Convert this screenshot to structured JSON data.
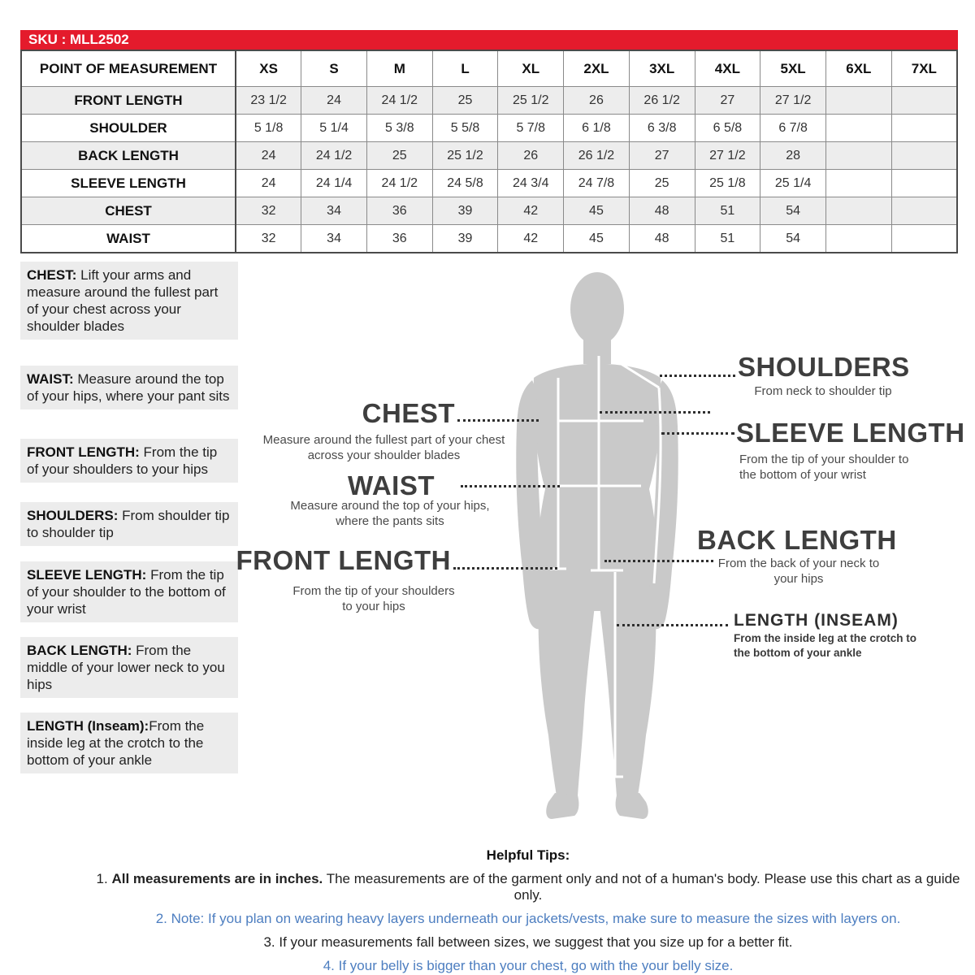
{
  "sku_bar": {
    "label": "SKU : MLL2502"
  },
  "colors": {
    "header_red": "#e41b2c",
    "tip_blue": "#4d7ec0",
    "tip_black": "#222222",
    "silhouette_gray": "#c9c9c9",
    "block_gray": "#ececec"
  },
  "table": {
    "columns": [
      "POINT OF MEASUREMENT",
      "XS",
      "S",
      "M",
      "L",
      "XL",
      "2XL",
      "3XL",
      "4XL",
      "5XL",
      "6XL",
      "7XL"
    ],
    "rows": [
      {
        "label": "FRONT LENGTH",
        "values": [
          "23 1/2",
          "24",
          "24 1/2",
          "25",
          "25 1/2",
          "26",
          "26 1/2",
          "27",
          "27 1/2",
          "",
          ""
        ]
      },
      {
        "label": "SHOULDER",
        "values": [
          "5 1/8",
          "5 1/4",
          "5 3/8",
          "5 5/8",
          "5 7/8",
          "6 1/8",
          "6 3/8",
          "6 5/8",
          "6 7/8",
          "",
          ""
        ]
      },
      {
        "label": "BACK LENGTH",
        "values": [
          "24",
          "24 1/2",
          "25",
          "25 1/2",
          "26",
          "26 1/2",
          "27",
          "27 1/2",
          "28",
          "",
          ""
        ]
      },
      {
        "label": "SLEEVE LENGTH",
        "values": [
          "24",
          "24 1/4",
          "24 1/2",
          "24 5/8",
          "24 3/4",
          "24 7/8",
          "25",
          "25 1/8",
          "25 1/4",
          "",
          ""
        ]
      },
      {
        "label": "CHEST",
        "values": [
          "32",
          "34",
          "36",
          "39",
          "42",
          "45",
          "48",
          "51",
          "54",
          "",
          ""
        ]
      },
      {
        "label": "WAIST",
        "values": [
          "32",
          "34",
          "36",
          "39",
          "42",
          "45",
          "48",
          "51",
          "54",
          "",
          ""
        ]
      }
    ]
  },
  "instructions": [
    {
      "title": "CHEST:",
      "text": " Lift your arms  and measure around the fullest part of your chest across your shoulder blades"
    },
    {
      "title": "WAIST:",
      "text": "  Measure around the top of your hips, where your pant sits"
    },
    {
      "title": "FRONT LENGTH:",
      "text": " From the tip of your shoulders to your hips"
    },
    {
      "title": "SHOULDERS:",
      "text": " From shoulder tip to shoulder tip"
    },
    {
      "title": "SLEEVE LENGTH:",
      "text": " From the tip of your shoulder to the bottom of your wrist"
    },
    {
      "title": "BACK LENGTH:",
      "text": " From the middle of your lower neck to you hips"
    },
    {
      "title": "LENGTH (Inseam):",
      "text": "From the inside leg at the crotch to the bottom of your ankle"
    }
  ],
  "diagram": {
    "callouts_left": [
      {
        "title": "CHEST",
        "sub": "Measure around the fullest part of your chest across your shoulder blades"
      },
      {
        "title": "WAIST",
        "sub": "Measure around the top of your hips, where the pants sits"
      },
      {
        "title": "FRONT LENGTH",
        "sub": "From the tip of your shoulders to your hips"
      }
    ],
    "callouts_right": [
      {
        "title": "SHOULDERS",
        "sub": "From neck to shoulder tip"
      },
      {
        "title": "SLEEVE LENGTH",
        "sub": "From the tip of your shoulder to the bottom of your wrist"
      },
      {
        "title": "BACK LENGTH",
        "sub": "From the back of your neck to your hips"
      },
      {
        "title": "LENGTH (INSEAM)",
        "sub": "From the inside leg at the crotch to the bottom of your ankle"
      }
    ]
  },
  "tips": {
    "heading": "Helpful Tips:",
    "items": [
      {
        "number": "1. ",
        "bold": "All measurements are in inches.",
        "text": " The measurements are of the garment only and not of a human's body. Please use this chart as a guide only.",
        "color": "#222222"
      },
      {
        "number": "2. ",
        "bold": "",
        "text": "Note: If you plan on wearing heavy layers underneath our jackets/vests, make sure to measure the sizes with layers on.",
        "color": "#4d7ec0"
      },
      {
        "number": "3. ",
        "bold": "",
        "text": "If your measurements fall between sizes, we suggest that you size up for a better fit.",
        "color": "#222222"
      },
      {
        "number": "4. ",
        "bold": "",
        "text": "If your belly is bigger than your chest, go with the your belly size.",
        "color": "#4d7ec0"
      }
    ]
  }
}
